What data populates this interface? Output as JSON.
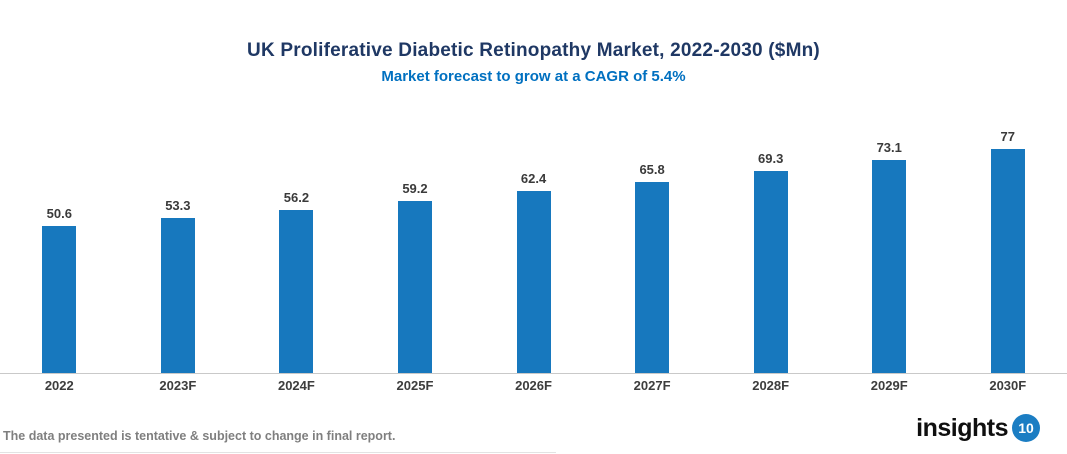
{
  "header": {
    "title": "UK Proliferative Diabetic Retinopathy Market, 2022-2030 ($Mn)",
    "subtitle": "Market forecast to grow at a CAGR of 5.4%"
  },
  "footer": {
    "disclaimer": "The data presented is tentative & subject to change in final report."
  },
  "logo": {
    "text": "insights",
    "badge": "10",
    "badge_color": "#1B7DC3"
  },
  "colors": {
    "bar": "#1778BE",
    "title": "#1F3864",
    "subtitle": "#0070C0",
    "axis_line": "#C9C9C9",
    "value_label": "#3A3A3A",
    "x_label": "#3D3D3D",
    "footer_text": "#7F7F7F"
  },
  "chart_data": {
    "type": "bar",
    "title": "UK Proliferative Diabetic Retinopathy Market, 2022-2030 ($Mn)",
    "subtitle": "Market forecast to grow at a CAGR of 5.4%",
    "categories": [
      "2022",
      "2023F",
      "2024F",
      "2025F",
      "2026F",
      "2027F",
      "2028F",
      "2029F",
      "2030F"
    ],
    "values": [
      50.6,
      53.3,
      56.2,
      59.2,
      62.4,
      65.8,
      69.3,
      73.1,
      77
    ],
    "xlabel": "",
    "ylabel": "",
    "ylim": [
      0,
      80
    ],
    "grid": false,
    "legend": false,
    "bar_color": "#1778BE",
    "value_labels": true
  }
}
